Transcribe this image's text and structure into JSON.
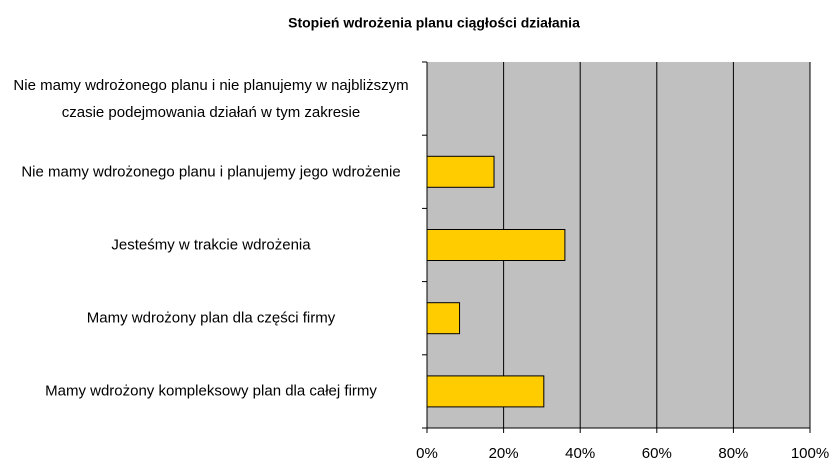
{
  "chart_data": {
    "type": "barh",
    "title": "Stopień wdrożenia planu ciągłości działania",
    "categories": [
      "Nie mamy wdrożonego planu i nie planujemy w najbliższym czasie podejmowania działań w tym zakresie",
      "Nie mamy wdrożonego planu i planujemy jego wdrożenie",
      "Jesteśmy w trakcie wdrożenia",
      "Mamy wdrożony plan dla części firmy",
      "Mamy wdrożony kompleksowy plan dla całej firmy"
    ],
    "values": [
      0,
      17.5,
      36,
      8.5,
      30.5
    ],
    "color": "#ffcc00",
    "xlim": [
      0,
      100
    ],
    "xticks": [
      {
        "value": 0,
        "label": "0%"
      },
      {
        "value": 20,
        "label": "20%"
      },
      {
        "value": 40,
        "label": "40%"
      },
      {
        "value": 60,
        "label": "60%"
      },
      {
        "value": 80,
        "label": "80%"
      },
      {
        "value": 100,
        "label": "100%"
      }
    ],
    "grid": true
  }
}
